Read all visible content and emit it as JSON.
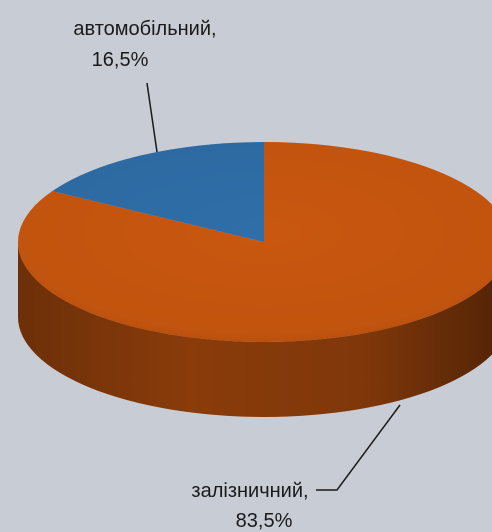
{
  "chart_data": {
    "type": "pie",
    "style": "3d",
    "title": "",
    "slices": [
      {
        "label": "автомобільний,",
        "value_text": "16,5%",
        "value": 16.5,
        "color": "#2f6ea8"
      },
      {
        "label": "залізничний,",
        "value_text": "83,5%",
        "value": 83.5,
        "color": "#c9570f"
      }
    ],
    "background": "#c8ccd4"
  }
}
